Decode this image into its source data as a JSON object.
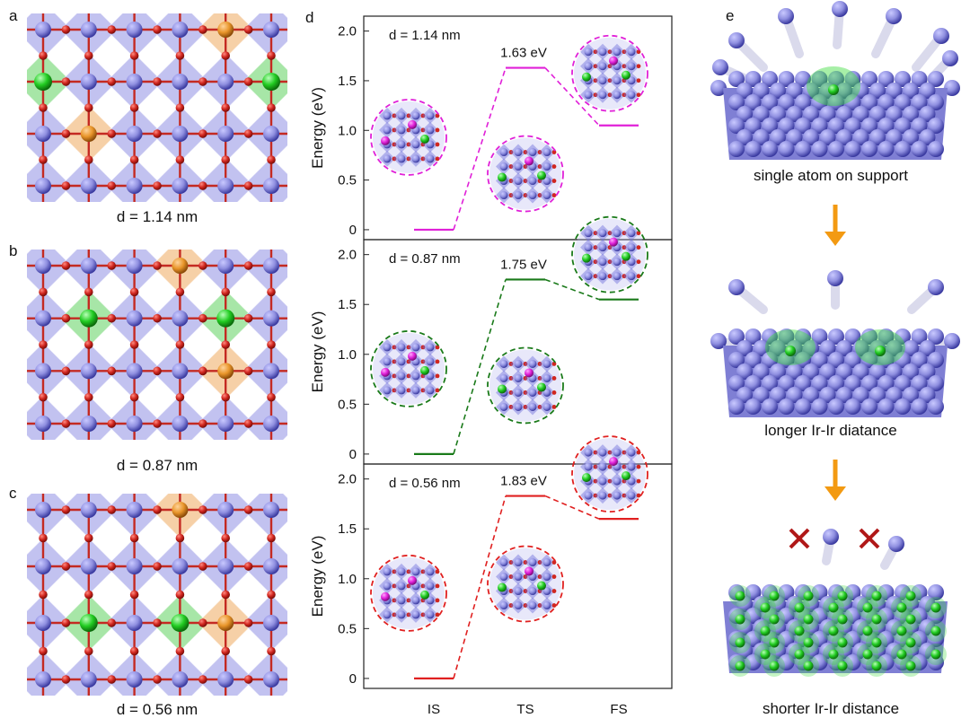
{
  "panel_labels": {
    "a": "a",
    "b": "b",
    "c": "c",
    "d": "d",
    "e": "e"
  },
  "structures": [
    {
      "caption": "d = 1.14 nm"
    },
    {
      "caption": "d = 0.87 nm"
    },
    {
      "caption": "d = 0.56 nm"
    }
  ],
  "schematic": {
    "captions": [
      "single atom on support",
      "longer Ir-Ir diatance",
      "shorter Ir-Ir distance"
    ]
  },
  "colors": {
    "support_atom": "#8f8fe0",
    "oxygen": "#d0261f",
    "ir_single": "#22cc22",
    "dopant": "#e8952a",
    "magenta": "#e020d8",
    "green_series": "#1a7a1a",
    "red_series": "#e02020"
  },
  "chart_data": [
    {
      "type": "line",
      "annotation": "d = 1.14 nm",
      "x": [
        "IS",
        "TS",
        "FS"
      ],
      "values": [
        0,
        1.63,
        1.05
      ],
      "ts_label": "1.63 eV",
      "ylabel": "Energy (eV)",
      "yticks": [
        "2.0",
        "1.5",
        "1.0",
        "0.5",
        "0"
      ],
      "ylim": [
        -0.1,
        2.15
      ],
      "color": "#e020d8"
    },
    {
      "type": "line",
      "annotation": "d = 0.87 nm",
      "x": [
        "IS",
        "TS",
        "FS"
      ],
      "values": [
        0,
        1.75,
        1.55
      ],
      "ts_label": "1.75 eV",
      "ylabel": "Energy (eV)",
      "yticks": [
        "2.0",
        "1.5",
        "1.0",
        "0.5",
        "0"
      ],
      "ylim": [
        -0.1,
        2.15
      ],
      "color": "#1a7a1a"
    },
    {
      "type": "line",
      "annotation": "d = 0.56 nm",
      "x": [
        "IS",
        "TS",
        "FS"
      ],
      "values": [
        0,
        1.83,
        1.6
      ],
      "ts_label": "1.83 eV",
      "ylabel": "Energy (eV)",
      "yticks": [
        "2.0",
        "1.5",
        "1.0",
        "0.5",
        "0"
      ],
      "ylim": [
        -0.1,
        2.15
      ],
      "color": "#e02020"
    }
  ]
}
